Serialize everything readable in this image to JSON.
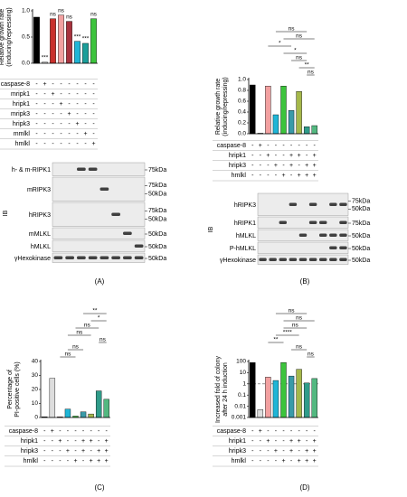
{
  "chart_data": [
    {
      "type": "bar",
      "ylabel": [
        "Relative growth rate",
        "(inducing/repressing)"
      ],
      "values": [
        0.88,
        0.02,
        0.85,
        0.92,
        0.8,
        0.42,
        0.38,
        0.85
      ],
      "colors": [
        "#000000",
        "#dddddd",
        "#c9302c",
        "#f2a0a0",
        "#a8323e",
        "#1fb5d6",
        "#1a9e9a",
        "#3cc43c"
      ],
      "annotations": [
        null,
        "***",
        "ns",
        "ns",
        "ns",
        "***",
        "***",
        "ns"
      ],
      "ylim": [
        0,
        1.0
      ],
      "yticks": [
        {
          "value": 0,
          "label": "0.0"
        },
        {
          "value": 0.5,
          "label": "0.5"
        },
        {
          "value": 1,
          "label": "1.0"
        }
      ]
    },
    {
      "type": "bar",
      "ylabel": [
        "Relative growth rate",
        "(inducing/repressing)"
      ],
      "values": [
        0.9,
        0.01,
        0.88,
        0.35,
        0.88,
        0.43,
        0.78,
        0.13,
        0.15
      ],
      "colors": [
        "#000000",
        "#dddddd",
        "#f2a0a0",
        "#1fb5d6",
        "#3cc43c",
        "#3a9aa8",
        "#a5b84a",
        "#2f9c8a",
        "#53b880"
      ],
      "brackets": [
        {
          "from": 7,
          "to": 8,
          "label": "ns"
        },
        {
          "from": 6,
          "to": 8,
          "label": "**"
        },
        {
          "from": 5,
          "to": 7,
          "label": "ns"
        },
        {
          "from": 4,
          "to": 7,
          "label": "*"
        },
        {
          "from": 2,
          "to": 5,
          "label": "*"
        },
        {
          "from": 4,
          "to": 8,
          "label": "ns"
        },
        {
          "from": 3,
          "to": 7,
          "label": "ns"
        }
      ],
      "ylim": [
        0,
        1.0
      ],
      "yticks": [
        {
          "value": 0,
          "label": "0.0"
        },
        {
          "value": 0.2,
          "label": "0.2"
        },
        {
          "value": 0.4,
          "label": "0.4"
        },
        {
          "value": 0.6,
          "label": "0.6"
        },
        {
          "value": 0.8,
          "label": "0.8"
        },
        {
          "value": 1,
          "label": "1.0"
        }
      ]
    },
    {
      "type": "bar",
      "ylabel": [
        "Percentage of",
        "PI-positive cells (%)"
      ],
      "values": [
        0.5,
        28,
        0.5,
        6,
        1,
        4,
        2.5,
        19,
        13
      ],
      "colors": [
        "#000000",
        "#dddddd",
        "#f2a0a0",
        "#1fb5d6",
        "#3cc43c",
        "#3a9aa8",
        "#a5b84a",
        "#2f9c8a",
        "#53b880"
      ],
      "brackets": [
        {
          "from": 2,
          "to": 4,
          "label": "ns"
        },
        {
          "from": 3,
          "to": 5,
          "label": "ns"
        },
        {
          "from": 7,
          "to": 8,
          "label": "ns"
        },
        {
          "from": 3,
          "to": 6,
          "label": "ns"
        },
        {
          "from": 4,
          "to": 7,
          "label": "ns"
        },
        {
          "from": 6,
          "to": 8,
          "label": "*"
        },
        {
          "from": 5,
          "to": 8,
          "label": "**"
        }
      ],
      "ylim": [
        0,
        40
      ],
      "yticks": [
        0,
        10,
        20,
        30,
        40
      ]
    },
    {
      "type": "bar",
      "log_scale": true,
      "ylabel": [
        "Increased fold of colony",
        "after 24 h induction"
      ],
      "values": [
        80,
        0.005,
        4,
        2,
        80,
        5,
        20,
        1.2,
        3
      ],
      "colors": [
        "#000000",
        "#dddddd",
        "#f2a0a0",
        "#1fb5d6",
        "#3cc43c",
        "#3a9aa8",
        "#a5b84a",
        "#2f9c8a",
        "#53b880"
      ],
      "reference_line": 1,
      "brackets": [
        {
          "from": 7,
          "to": 8,
          "label": "ns"
        },
        {
          "from": 5,
          "to": 7,
          "label": "ns"
        },
        {
          "from": 2,
          "to": 4,
          "label": "**"
        },
        {
          "from": 3,
          "to": 6,
          "label": "****"
        },
        {
          "from": 4,
          "to": 7,
          "label": "ns"
        },
        {
          "from": 4,
          "to": 8,
          "label": "ns"
        },
        {
          "from": 3,
          "to": 7,
          "label": "ns"
        }
      ],
      "ylim": [
        0.001,
        100
      ],
      "yticks": [
        0.001,
        0.01,
        0.1,
        1,
        10,
        100
      ]
    }
  ],
  "panels": [
    {
      "label": "(A)",
      "conditions": {
        "rows": [
          "caspase-8",
          "mripk1",
          "hripk1",
          "mripk3",
          "hripk3",
          "mmlkl",
          "hmlkl"
        ],
        "cells": [
          [
            "-",
            "+",
            "-",
            "-",
            "-",
            "-",
            "-",
            "-"
          ],
          [
            "-",
            "-",
            "+",
            "-",
            "-",
            "-",
            "-",
            "-"
          ],
          [
            "-",
            "-",
            "-",
            "+",
            "-",
            "-",
            "-",
            "-"
          ],
          [
            "-",
            "-",
            "-",
            "-",
            "+",
            "-",
            "-",
            "-"
          ],
          [
            "-",
            "-",
            "-",
            "-",
            "-",
            "+",
            "-",
            "-"
          ],
          [
            "-",
            "-",
            "-",
            "-",
            "-",
            "-",
            "+",
            "-"
          ],
          [
            "-",
            "-",
            "-",
            "-",
            "-",
            "-",
            "-",
            "+"
          ]
        ]
      },
      "blot": {
        "group": "IB",
        "rows": [
          {
            "name": "h- & m-RIPK1",
            "markers": [
              "75kDa"
            ]
          },
          {
            "name": "mRIPK3",
            "markers": [
              "75kDa",
              "50kDa"
            ]
          },
          {
            "name": "hRIPK3",
            "markers": [
              "75kDa",
              "50kDa"
            ]
          },
          {
            "name": "mMLKL",
            "markers": [
              "50kDa"
            ]
          },
          {
            "name": "hMLKL",
            "markers": [
              "50kDa"
            ]
          },
          {
            "name": "γHexokinase",
            "markers": [
              "50kDa"
            ]
          }
        ]
      }
    },
    {
      "label": "(B)",
      "conditions": {
        "rows": [
          "caspase-8",
          "hripk1",
          "hripk3",
          "hmlkl"
        ],
        "cells": [
          [
            "-",
            "+",
            "-",
            "-",
            "-",
            "-",
            "-",
            "-",
            "-"
          ],
          [
            "-",
            "-",
            "+",
            "-",
            "-",
            "+",
            "+",
            "-",
            "+"
          ],
          [
            "-",
            "-",
            "-",
            "+",
            "-",
            "+",
            "-",
            "+",
            "+"
          ],
          [
            "-",
            "-",
            "-",
            "-",
            "+",
            "-",
            "+",
            "+",
            "+"
          ]
        ]
      },
      "blot": {
        "group": "IB",
        "rows": [
          {
            "name": "hRIPK3",
            "markers": [
              "75kDa",
              "50kDa"
            ]
          },
          {
            "name": "hRIPK1",
            "markers": [
              "75kDa"
            ]
          },
          {
            "name": "hMLKL",
            "markers": [
              "50kDa"
            ]
          },
          {
            "name": "P-hMLKL",
            "markers": [
              "50kDa"
            ]
          },
          {
            "name": "γHexokinase",
            "markers": [
              "50kDa"
            ]
          }
        ]
      }
    },
    {
      "label": "(C)",
      "conditions": {
        "rows": [
          "caspase-8",
          "hripk1",
          "hripk3",
          "hmlkl"
        ],
        "cells": [
          [
            "-",
            "+",
            "-",
            "-",
            "-",
            "-",
            "-",
            "-",
            "-"
          ],
          [
            "-",
            "-",
            "+",
            "-",
            "-",
            "+",
            "+",
            "-",
            "+"
          ],
          [
            "-",
            "-",
            "-",
            "+",
            "-",
            "+",
            "-",
            "+",
            "+"
          ],
          [
            "-",
            "-",
            "-",
            "-",
            "+",
            "-",
            "+",
            "+",
            "+"
          ]
        ]
      }
    },
    {
      "label": "(D)",
      "conditions": {
        "rows": [
          "caspase-8",
          "hripk1",
          "hripk3",
          "hmlkl"
        ],
        "cells": [
          [
            "-",
            "+",
            "-",
            "-",
            "-",
            "-",
            "-",
            "-",
            "-"
          ],
          [
            "-",
            "-",
            "+",
            "-",
            "-",
            "+",
            "+",
            "-",
            "+"
          ],
          [
            "-",
            "-",
            "-",
            "+",
            "-",
            "+",
            "-",
            "+",
            "+"
          ],
          [
            "-",
            "-",
            "-",
            "-",
            "+",
            "-",
            "+",
            "+",
            "+"
          ]
        ]
      }
    }
  ]
}
